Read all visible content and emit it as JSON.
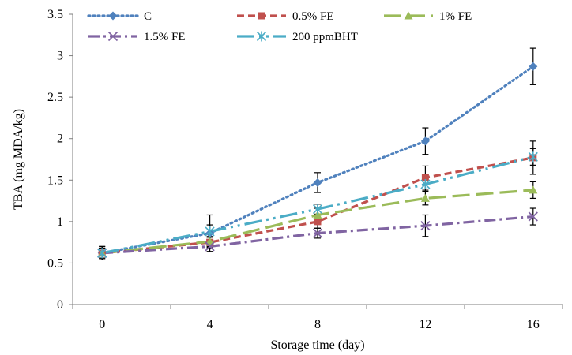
{
  "chart_data": {
    "type": "line",
    "xlabel": "Storage time (day)",
    "ylabel": "TBA (mg MDA/kg)",
    "x": [
      0,
      4,
      8,
      12,
      16
    ],
    "xticks": [
      "0",
      "4",
      "8",
      "12",
      "16"
    ],
    "yticks": [
      "0",
      "0.5",
      "1",
      "1.5",
      "2",
      "2.5",
      "3",
      "3.5"
    ],
    "ylim": [
      0,
      3.5
    ],
    "grid": false,
    "legend_position": "top",
    "series": [
      {
        "name": "C",
        "values": [
          0.62,
          0.86,
          1.47,
          1.97,
          2.87
        ],
        "errors": [
          0.08,
          0.1,
          0.12,
          0.16,
          0.22
        ],
        "color": "#4F81BD",
        "dash": "dotted",
        "marker": "diamond"
      },
      {
        "name": "0.5% FE",
        "values": [
          0.62,
          0.75,
          1.0,
          1.53,
          1.77
        ],
        "errors": [
          0.06,
          0.06,
          0.08,
          0.14,
          0.2
        ],
        "color": "#C0504D",
        "dash": "dashed",
        "marker": "square"
      },
      {
        "name": "1% FE",
        "values": [
          0.62,
          0.76,
          1.08,
          1.28,
          1.38
        ],
        "errors": [
          0.06,
          0.06,
          0.08,
          0.08,
          0.1
        ],
        "color": "#9BBB59",
        "dash": "longdash",
        "marker": "triangle"
      },
      {
        "name": "1.5% FE",
        "values": [
          0.62,
          0.7,
          0.86,
          0.95,
          1.06
        ],
        "errors": [
          0.06,
          0.06,
          0.06,
          0.13,
          0.1
        ],
        "color": "#8064A2",
        "dash": "dashdot",
        "marker": "x"
      },
      {
        "name": "200 ppmBHT",
        "values": [
          0.62,
          0.88,
          1.15,
          1.45,
          1.78
        ],
        "errors": [
          0.08,
          0.2,
          0.06,
          0.08,
          0.1
        ],
        "color": "#4BACC6",
        "dash": "longdashdot",
        "marker": "star"
      }
    ]
  }
}
